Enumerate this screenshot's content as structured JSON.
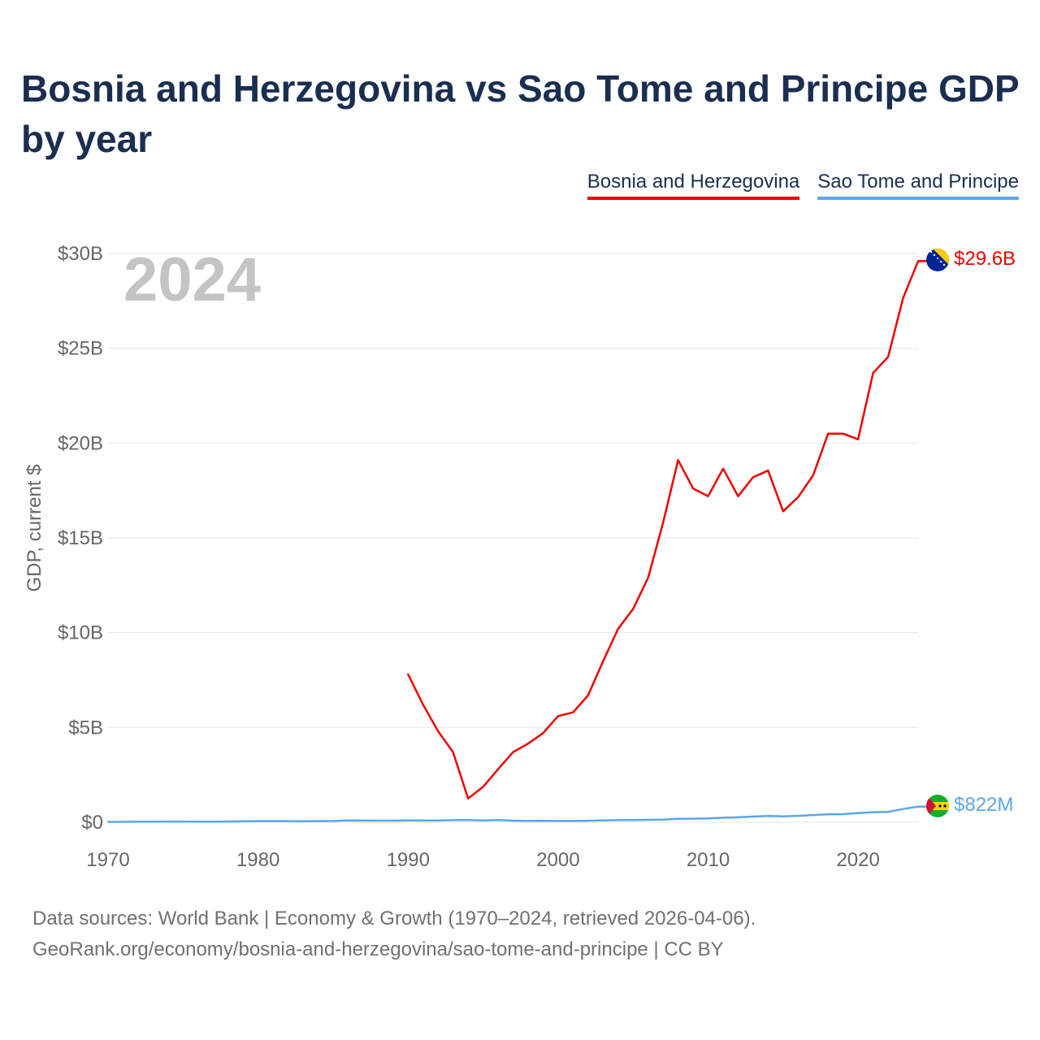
{
  "title": "Bosnia and Herzegovina vs Sao Tome and Principe GDP by year",
  "legend": [
    {
      "label": "Bosnia and Herzegovina",
      "color": "#ee0000"
    },
    {
      "label": "Sao Tome and Principe",
      "color": "#5aa7e8"
    }
  ],
  "footer": {
    "line1": "Data sources: World Bank | Economy & Growth (1970–2024, retrieved 2026-04-06).",
    "line2": "GeoRank.org/economy/bosnia-and-herzegovina/sao-tome-and-principe | CC BY"
  },
  "chart_data": {
    "type": "line",
    "title": "Bosnia and Herzegovina vs Sao Tome and Principe GDP by year",
    "xlabel": "",
    "ylabel": "GDP, current $",
    "year_label": "2024",
    "xlim": [
      1970,
      2024
    ],
    "ylim": [
      0,
      30
    ],
    "y_unit": "billions of current US$",
    "x_ticks": [
      1970,
      1980,
      1990,
      2000,
      2010,
      2020
    ],
    "x_tick_labels": [
      "1970",
      "1980",
      "1990",
      "2000",
      "2010",
      "2020"
    ],
    "y_ticks": [
      0,
      5,
      10,
      15,
      20,
      25,
      30
    ],
    "y_tick_labels": [
      "$0",
      "$5B",
      "$10B",
      "$15B",
      "$20B",
      "$25B",
      "$30B"
    ],
    "grid": true,
    "series": [
      {
        "name": "Bosnia and Herzegovina",
        "color": "#ee0000",
        "end_label": "$29.6B",
        "x": [
          1990,
          1991,
          1992,
          1993,
          1994,
          1995,
          1996,
          1997,
          1998,
          1999,
          2000,
          2001,
          2002,
          2003,
          2004,
          2005,
          2006,
          2007,
          2008,
          2009,
          2010,
          2011,
          2012,
          2013,
          2014,
          2015,
          2016,
          2017,
          2018,
          2019,
          2020,
          2021,
          2022,
          2023,
          2024
        ],
        "values": [
          7.8,
          6.2,
          4.8,
          3.7,
          1.25,
          1.87,
          2.8,
          3.7,
          4.15,
          4.7,
          5.6,
          5.8,
          6.7,
          8.5,
          10.2,
          11.25,
          12.9,
          15.8,
          19.1,
          17.6,
          17.2,
          18.65,
          17.2,
          18.2,
          18.55,
          16.4,
          17.15,
          18.3,
          20.5,
          20.5,
          20.2,
          23.7,
          24.55,
          27.65,
          29.6
        ]
      },
      {
        "name": "Sao Tome and Principe",
        "color": "#5aa7e8",
        "end_label": "$822M",
        "x": [
          1970,
          1971,
          1972,
          1973,
          1974,
          1975,
          1976,
          1977,
          1978,
          1979,
          1980,
          1981,
          1982,
          1983,
          1984,
          1985,
          1986,
          1987,
          1988,
          1989,
          1990,
          1991,
          1992,
          1993,
          1994,
          1995,
          1996,
          1997,
          1998,
          1999,
          2000,
          2001,
          2002,
          2003,
          2004,
          2005,
          2006,
          2007,
          2008,
          2009,
          2010,
          2011,
          2012,
          2013,
          2014,
          2015,
          2016,
          2017,
          2018,
          2019,
          2020,
          2021,
          2022,
          2023,
          2024
        ],
        "values": [
          0.02,
          0.02,
          0.03,
          0.035,
          0.04,
          0.04,
          0.035,
          0.035,
          0.04,
          0.05,
          0.06,
          0.06,
          0.06,
          0.055,
          0.06,
          0.07,
          0.1,
          0.09,
          0.085,
          0.085,
          0.1,
          0.09,
          0.09,
          0.11,
          0.12,
          0.09,
          0.12,
          0.08,
          0.07,
          0.08,
          0.07,
          0.07,
          0.08,
          0.1,
          0.11,
          0.12,
          0.13,
          0.14,
          0.18,
          0.19,
          0.2,
          0.24,
          0.26,
          0.3,
          0.33,
          0.31,
          0.34,
          0.38,
          0.42,
          0.43,
          0.48,
          0.53,
          0.55,
          0.7,
          0.822
        ]
      }
    ]
  }
}
